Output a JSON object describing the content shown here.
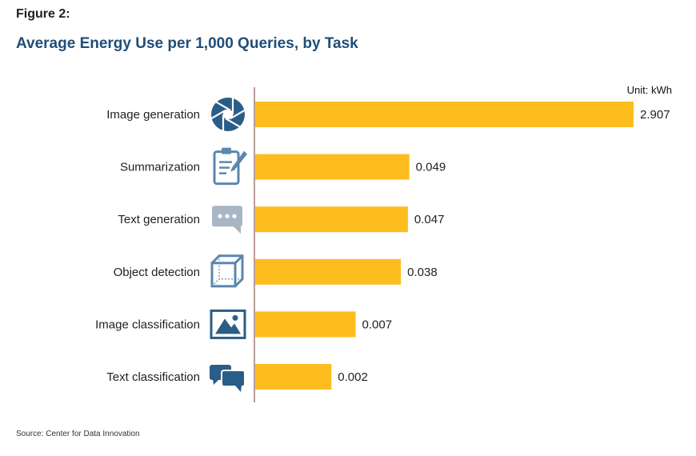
{
  "figure_label": "Figure 2:",
  "source": "Source: Center for Data Innovation",
  "colors": {
    "bar": "#fdbd1f",
    "title": "#1f4e79",
    "axis": "#8b5a52",
    "icon_dark": "#2a5d87",
    "icon_mid": "#5b87b0",
    "icon_light": "#a8b6c4"
  },
  "chart_data": {
    "type": "bar",
    "orientation": "horizontal",
    "title": "Average Energy Use per 1,000 Queries, by Task",
    "unit_label": "Unit: kWh",
    "categories": [
      "Image generation",
      "Summarization",
      "Text generation",
      "Object detection",
      "Image classification",
      "Text classification"
    ],
    "values": [
      2.907,
      0.049,
      0.047,
      0.038,
      0.007,
      0.002
    ],
    "value_labels": [
      "2.907",
      "0.049",
      "0.047",
      "0.038",
      "0.007",
      "0.002"
    ],
    "icons": [
      "camera-aperture-icon",
      "clipboard-pencil-icon",
      "speech-bubble-dots-icon",
      "cube-icon",
      "picture-mountain-icon",
      "chat-bubbles-icon"
    ],
    "xlabel": "",
    "ylabel": "",
    "grid": false,
    "legend": "none"
  }
}
